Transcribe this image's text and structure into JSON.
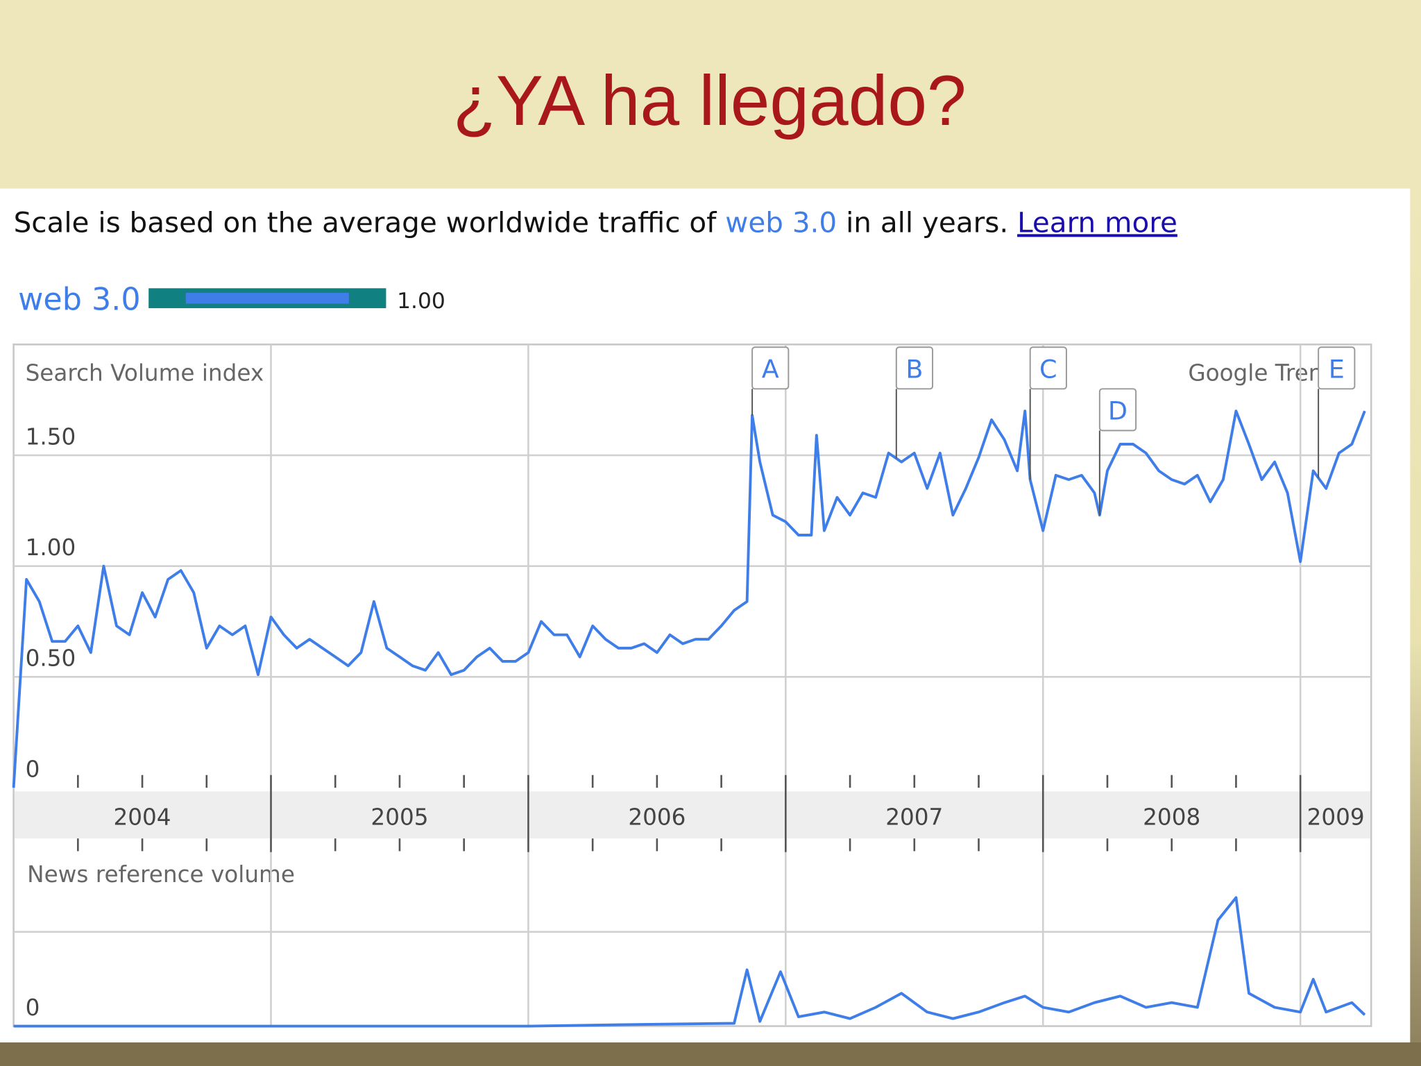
{
  "slide": {
    "title": "¿YA ha llegado?"
  },
  "scale_note": {
    "text": "Scale is based on the average worldwide traffic of",
    "term": "web 3.0",
    "suffix": "in all years.",
    "link": "Learn more"
  },
  "chart_data": [
    {
      "type": "line",
      "title": "Search Volume index",
      "brand": "Google Trends",
      "legend_average": {
        "value": 1,
        "label": "1.00"
      },
      "xlim": [
        2004,
        2009.275
      ],
      "xticks": [
        {
          "value": 2004,
          "label": "2004"
        },
        {
          "value": 2005,
          "label": "2005"
        },
        {
          "value": 2006,
          "label": "2006"
        },
        {
          "value": 2007,
          "label": "2007"
        },
        {
          "value": 2008,
          "label": "2008"
        },
        {
          "value": 2009,
          "label": "2009"
        }
      ],
      "xticks_minor": [
        2004.25,
        2004.5,
        2004.75,
        2005.25,
        2005.5,
        2005.75,
        2006.25,
        2006.5,
        2006.75,
        2007.25,
        2007.5,
        2007.75,
        2008.25,
        2008.5,
        2008.75
      ],
      "ylim": [
        0,
        2
      ],
      "yticks": [
        0,
        {
          "value": 0.5,
          "label": "0.50"
        },
        {
          "value": 1,
          "label": "1.00"
        },
        {
          "value": 1.5,
          "label": "1.50"
        }
      ],
      "grid": true,
      "annotations": [
        {
          "label": "A",
          "x": 2006.87
        },
        {
          "label": "B",
          "x": 2007.43
        },
        {
          "label": "C",
          "x": 2007.95
        },
        {
          "label": "D",
          "x": 2008.22
        },
        {
          "label": "E",
          "x": 2009.07
        }
      ],
      "x": [
        2004.0,
        2004.05,
        2004.1,
        2004.15,
        2004.2,
        2004.25,
        2004.3,
        2004.35,
        2004.4,
        2004.45,
        2004.5,
        2004.55,
        2004.6,
        2004.65,
        2004.7,
        2004.75,
        2004.8,
        2004.85,
        2004.9,
        2004.95,
        2005.0,
        2005.05,
        2005.1,
        2005.15,
        2005.2,
        2005.25,
        2005.3,
        2005.35,
        2005.4,
        2005.45,
        2005.5,
        2005.55,
        2005.6,
        2005.65,
        2005.7,
        2005.75,
        2005.8,
        2005.85,
        2005.9,
        2005.95,
        2006.0,
        2006.05,
        2006.1,
        2006.15,
        2006.2,
        2006.25,
        2006.3,
        2006.35,
        2006.4,
        2006.45,
        2006.5,
        2006.55,
        2006.6,
        2006.65,
        2006.7,
        2006.75,
        2006.8,
        2006.85,
        2006.87,
        2006.9,
        2006.95,
        2007.0,
        2007.05,
        2007.1,
        2007.12,
        2007.15,
        2007.2,
        2007.25,
        2007.3,
        2007.35,
        2007.4,
        2007.45,
        2007.5,
        2007.55,
        2007.6,
        2007.65,
        2007.7,
        2007.75,
        2007.8,
        2007.85,
        2007.9,
        2007.93,
        2007.95,
        2008.0,
        2008.05,
        2008.1,
        2008.15,
        2008.2,
        2008.22,
        2008.25,
        2008.3,
        2008.35,
        2008.4,
        2008.45,
        2008.5,
        2008.55,
        2008.6,
        2008.65,
        2008.7,
        2008.75,
        2008.8,
        2008.85,
        2008.9,
        2008.95,
        2009.0,
        2009.05,
        2009.1,
        2009.15,
        2009.2,
        2009.25
      ],
      "series": [
        {
          "name": "web 3.0",
          "color": "#3f7ee8",
          "values": [
            0,
            0.94,
            0.84,
            0.66,
            0.66,
            0.73,
            0.61,
            1.0,
            0.73,
            0.69,
            0.88,
            0.77,
            0.94,
            0.98,
            0.88,
            0.63,
            0.73,
            0.69,
            0.73,
            0.51,
            0.77,
            0.69,
            0.63,
            0.67,
            0.63,
            0.59,
            0.55,
            0.61,
            0.84,
            0.63,
            0.59,
            0.55,
            0.53,
            0.61,
            0.51,
            0.53,
            0.59,
            0.63,
            0.57,
            0.57,
            0.61,
            0.75,
            0.69,
            0.69,
            0.59,
            0.73,
            0.67,
            0.63,
            0.63,
            0.65,
            0.61,
            0.69,
            0.65,
            0.67,
            0.67,
            0.73,
            0.8,
            0.84,
            1.68,
            1.47,
            1.23,
            1.2,
            1.14,
            1.14,
            1.59,
            1.16,
            1.31,
            1.23,
            1.33,
            1.31,
            1.51,
            1.47,
            1.51,
            1.35,
            1.51,
            1.23,
            1.35,
            1.49,
            1.66,
            1.57,
            1.43,
            1.7,
            1.39,
            1.16,
            1.41,
            1.39,
            1.41,
            1.33,
            1.23,
            1.43,
            1.55,
            1.55,
            1.51,
            1.43,
            1.39,
            1.37,
            1.41,
            1.29,
            1.39,
            1.7,
            1.55,
            1.39,
            1.47,
            1.33,
            1.02,
            1.43,
            1.35,
            1.51,
            1.55,
            1.7
          ]
        }
      ]
    },
    {
      "type": "line",
      "title": "News reference volume",
      "xlim": [
        2004,
        2009.275
      ],
      "ylim": [
        0,
        2
      ],
      "yticks": [
        0
      ],
      "x": [
        2004.0,
        2004.5,
        2005.0,
        2005.5,
        2006.0,
        2006.5,
        2006.8,
        2006.85,
        2006.9,
        2006.98,
        2007.05,
        2007.15,
        2007.25,
        2007.35,
        2007.45,
        2007.55,
        2007.65,
        2007.75,
        2007.85,
        2007.93,
        2008.0,
        2008.1,
        2008.2,
        2008.3,
        2008.4,
        2008.5,
        2008.6,
        2008.68,
        2008.75,
        2008.8,
        2008.9,
        2009.0,
        2009.05,
        2009.1,
        2009.2,
        2009.25
      ],
      "series": [
        {
          "name": "web 3.0",
          "color": "#3f7ee8",
          "values": [
            0,
            0,
            0,
            0,
            0,
            0.02,
            0.03,
            0.6,
            0.05,
            0.58,
            0.1,
            0.15,
            0.08,
            0.2,
            0.35,
            0.15,
            0.08,
            0.15,
            0.25,
            0.32,
            0.2,
            0.15,
            0.25,
            0.32,
            0.2,
            0.25,
            0.2,
            1.13,
            1.37,
            0.35,
            0.2,
            0.15,
            0.5,
            0.15,
            0.25,
            0.12
          ]
        }
      ]
    }
  ]
}
